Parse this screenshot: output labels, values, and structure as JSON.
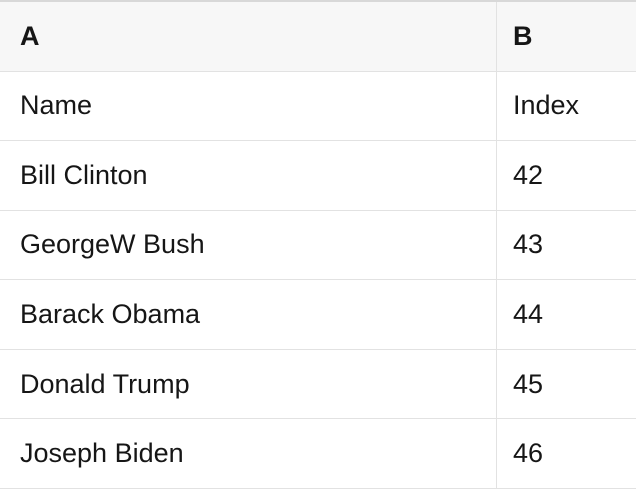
{
  "colors": {
    "header_bg": "#f7f7f7",
    "divider": "#e2e2e2",
    "top_border": "#d8d8d8",
    "text": "#161616"
  },
  "table": {
    "column_headers": [
      "A",
      "B"
    ],
    "rows": [
      {
        "a": "Name",
        "b": "Index"
      },
      {
        "a": "Bill Clinton",
        "b": 42
      },
      {
        "a": "GeorgeW Bush",
        "b": 43
      },
      {
        "a": "Barack Obama",
        "b": 44
      },
      {
        "a": "Donald Trump",
        "b": 45
      },
      {
        "a": "Joseph Biden",
        "b": 46
      }
    ]
  }
}
